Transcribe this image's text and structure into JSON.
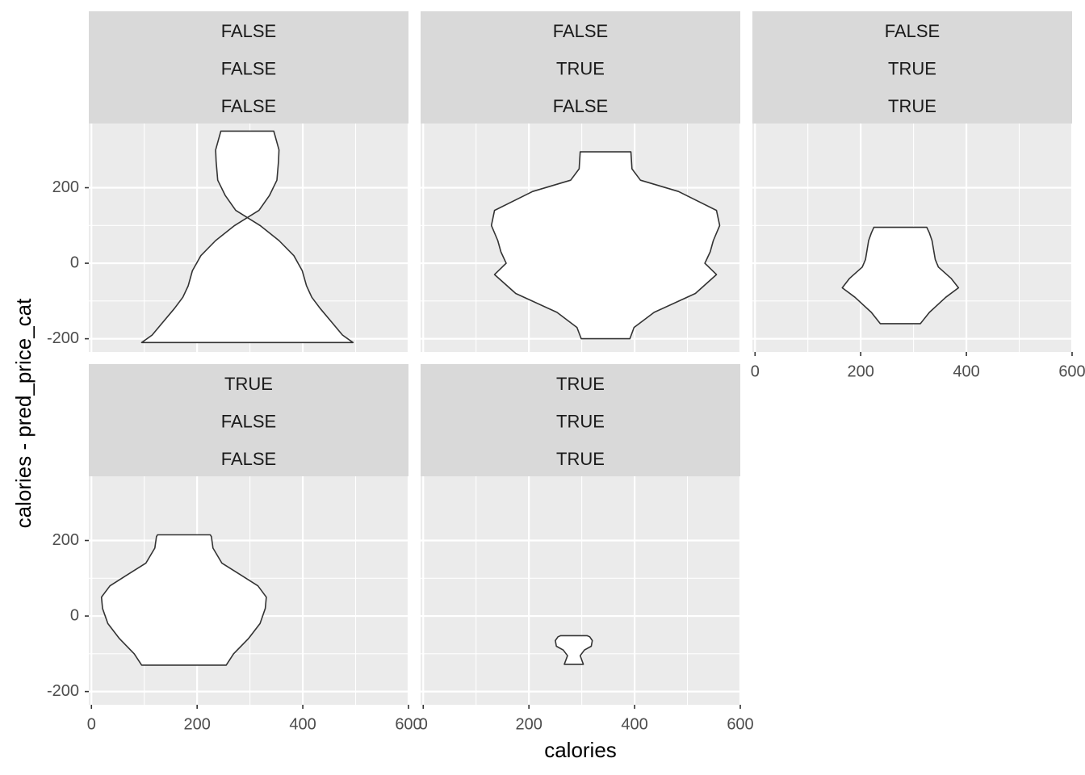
{
  "chart_data": {
    "type": "violin",
    "facet_layout": "wrap",
    "xlabel": "calories",
    "ylabel": "calories - pred_price_cat",
    "xlim": [
      -5,
      600
    ],
    "ylim": [
      -235,
      370
    ],
    "x_ticks": [
      0,
      200,
      400,
      600
    ],
    "y_ticks": [
      -200,
      0,
      200
    ],
    "x_tick_labels": [
      "0",
      "200",
      "400",
      "600"
    ],
    "y_tick_labels": [
      "-200",
      "0",
      "200"
    ],
    "grid": true,
    "panels": [
      {
        "strip": [
          "FALSE",
          "FALSE",
          "FALSE"
        ],
        "x_center": 295,
        "profile": [
          [
            -210,
            200
          ],
          [
            -190,
            180
          ],
          [
            -160,
            162
          ],
          [
            -120,
            138
          ],
          [
            -90,
            122
          ],
          [
            -60,
            112
          ],
          [
            -20,
            104
          ],
          [
            20,
            88
          ],
          [
            60,
            60
          ],
          [
            100,
            24
          ],
          [
            140,
            -22
          ],
          [
            180,
            -42
          ],
          [
            220,
            -56
          ],
          [
            270,
            -59
          ],
          [
            300,
            -60
          ],
          [
            350,
            -50
          ]
        ]
      },
      {
        "strip": [
          "FALSE",
          "TRUE",
          "FALSE"
        ],
        "x_center": 345,
        "profile": [
          [
            -200,
            46
          ],
          [
            -170,
            54
          ],
          [
            -130,
            92
          ],
          [
            -80,
            170
          ],
          [
            -30,
            210
          ],
          [
            0,
            188
          ],
          [
            30,
            198
          ],
          [
            60,
            204
          ],
          [
            100,
            216
          ],
          [
            140,
            210
          ],
          [
            190,
            138
          ],
          [
            220,
            66
          ],
          [
            250,
            50
          ],
          [
            295,
            48
          ]
        ]
      },
      {
        "strip": [
          "FALSE",
          "TRUE",
          "TRUE"
        ],
        "x_center": 275,
        "profile": [
          [
            -160,
            38
          ],
          [
            -130,
            55
          ],
          [
            -90,
            86
          ],
          [
            -65,
            110
          ],
          [
            -40,
            96
          ],
          [
            -10,
            72
          ],
          [
            10,
            66
          ],
          [
            60,
            60
          ],
          [
            80,
            55
          ],
          [
            95,
            50
          ]
        ]
      },
      {
        "strip": [
          "TRUE",
          "FALSE",
          "FALSE"
        ],
        "x_center": 175,
        "profile": [
          [
            -130,
            80
          ],
          [
            -100,
            94
          ],
          [
            -60,
            122
          ],
          [
            -20,
            144
          ],
          [
            20,
            154
          ],
          [
            50,
            156
          ],
          [
            80,
            140
          ],
          [
            110,
            106
          ],
          [
            140,
            72
          ],
          [
            180,
            55
          ],
          [
            210,
            52
          ],
          [
            215,
            50
          ]
        ]
      },
      {
        "strip": [
          "TRUE",
          "TRUE",
          "TRUE"
        ],
        "x_center": 285,
        "profile": [
          [
            -128,
            18
          ],
          [
            -105,
            12
          ],
          [
            -90,
            20
          ],
          [
            -80,
            33
          ],
          [
            -65,
            35
          ],
          [
            -55,
            30
          ],
          [
            -52,
            25
          ]
        ]
      }
    ]
  }
}
